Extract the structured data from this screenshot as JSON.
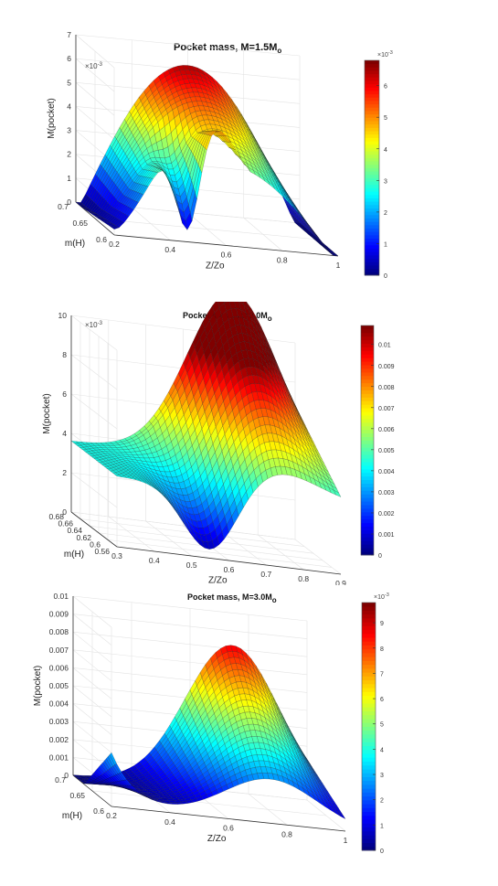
{
  "chart_data": [
    {
      "type": "surface",
      "title_main": "Pocket mass, M=1.5M",
      "title_sub": "o",
      "xlabel": "Z/Zo",
      "ylabel": "m(H)",
      "zlabel": "M(pocket)",
      "z_exponent": "×10",
      "z_exponent_power": "-3",
      "colorbar_exponent_power": "-3",
      "x_ticks": [
        "0.2",
        "0.4",
        "0.6",
        "0.8",
        "1"
      ],
      "y_ticks": [
        "0.6",
        "0.65",
        "0.7"
      ],
      "z_ticks": [
        "0",
        "1",
        "2",
        "3",
        "4",
        "5",
        "6",
        "7"
      ],
      "colorbar_ticks": [
        "0",
        "1",
        "2",
        "3",
        "4",
        "5",
        "6"
      ],
      "xlim": [
        0.2,
        1.0
      ],
      "ylim": [
        0.6,
        0.7
      ],
      "zlim": [
        0,
        7
      ],
      "colorbar_range": [
        0,
        6.8
      ],
      "surface_peak_z": 6.3
    },
    {
      "type": "surface",
      "title_main": "Pocket mass, M=2.0M",
      "title_sub": "o",
      "xlabel": "Z/Zo",
      "ylabel": "m(H)",
      "zlabel": "M(pocket)",
      "z_exponent": "×10",
      "z_exponent_power": "-3",
      "x_ticks": [
        "0.3",
        "0.4",
        "0.5",
        "0.6",
        "0.7",
        "0.8",
        "0.9"
      ],
      "y_ticks": [
        "0.56",
        "0.6",
        "0.62",
        "0.64",
        "0.66",
        "0.68"
      ],
      "z_ticks": [
        "0",
        "2",
        "4",
        "6",
        "8",
        "10"
      ],
      "colorbar_ticks": [
        "0",
        "0.001",
        "0.002",
        "0.003",
        "0.004",
        "0.005",
        "0.006",
        "0.007",
        "0.008",
        "0.009",
        "0.01"
      ],
      "xlim": [
        0.3,
        0.95
      ],
      "ylim": [
        0.56,
        0.68
      ],
      "zlim": [
        -1,
        11
      ],
      "colorbar_range": [
        0,
        0.0109
      ],
      "surface_peak_z": 9.8
    },
    {
      "type": "surface",
      "title_main": "Pocket mass, M=3.0M",
      "title_sub": "o",
      "xlabel": "Z/Zo",
      "ylabel": "m(H)",
      "zlabel": "M(pocket)",
      "colorbar_exponent": "×10",
      "colorbar_exponent_power": "-3",
      "x_ticks": [
        "0.2",
        "0.4",
        "0.6",
        "0.8",
        "1"
      ],
      "y_ticks": [
        "0.6",
        "0.65",
        "0.7"
      ],
      "z_ticks": [
        "0",
        "0.001",
        "0.002",
        "0.003",
        "0.004",
        "0.005",
        "0.006",
        "0.007",
        "0.008",
        "0.009",
        "0.01"
      ],
      "colorbar_ticks": [
        "0",
        "1",
        "2",
        "3",
        "4",
        "5",
        "6",
        "7",
        "8",
        "9"
      ],
      "xlim": [
        0.2,
        1.0
      ],
      "ylim": [
        0.6,
        0.7
      ],
      "zlim": [
        0,
        0.01
      ],
      "colorbar_range": [
        0,
        9.8
      ],
      "surface_peak_z": 0.0082
    }
  ]
}
